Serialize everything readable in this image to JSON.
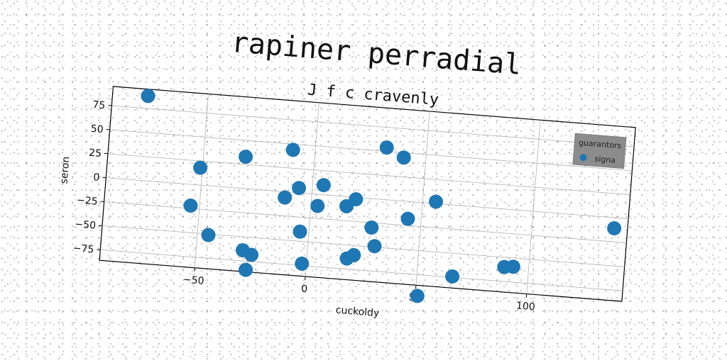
{
  "chart_data": {
    "type": "scatter",
    "title": "rapiner perradial",
    "subtitle": "J f c cravenly",
    "xlabel": "cuckoldy",
    "ylabel": "seron",
    "xlim": [
      -93,
      143
    ],
    "ylim": [
      -86,
      95
    ],
    "xticks": [
      -50,
      0,
      50,
      100
    ],
    "yticks": [
      -75,
      -50,
      -25,
      0,
      25,
      50,
      75
    ],
    "grid": true,
    "legend": {
      "title": "guarantors",
      "placement": "top-right"
    },
    "colors": {
      "series": "#1f77b4",
      "legend_bg": "#8c8c8c"
    },
    "series": [
      {
        "name": "signa",
        "points": [
          [
            -77,
            88
          ],
          [
            -31,
            33
          ],
          [
            -51,
            18
          ],
          [
            -54,
            -22
          ],
          [
            -45,
            -51
          ],
          [
            -29,
            -64
          ],
          [
            -25,
            -68
          ],
          [
            -27,
            -84
          ],
          [
            -10,
            44
          ],
          [
            -12,
            -6
          ],
          [
            -6,
            5
          ],
          [
            -4,
            -40
          ],
          [
            -2,
            -73
          ],
          [
            5,
            10
          ],
          [
            3,
            -12
          ],
          [
            16,
            -10
          ],
          [
            20,
            -2
          ],
          [
            18,
            -64
          ],
          [
            21,
            -60
          ],
          [
            28,
            -30
          ],
          [
            30,
            -49
          ],
          [
            32,
            54
          ],
          [
            40,
            45
          ],
          [
            44,
            -18
          ],
          [
            56,
            2
          ],
          [
            51,
            -97
          ],
          [
            66,
            -74
          ],
          [
            89,
            -60
          ],
          [
            93,
            -59
          ],
          [
            137,
            -11
          ]
        ]
      }
    ]
  }
}
